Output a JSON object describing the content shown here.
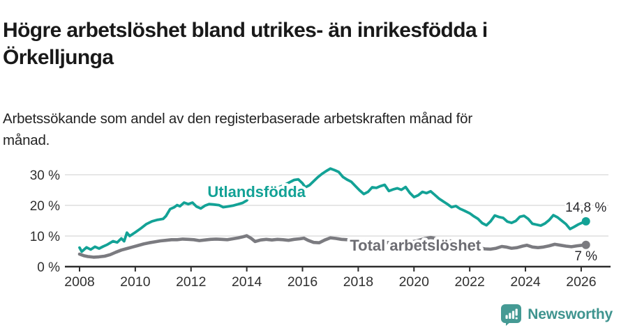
{
  "header": {
    "title_lines": [
      "Högre arbetslöshet bland utrikes- än inrikesfödda i",
      "Örkelljunga"
    ],
    "subtitle_lines": [
      "Arbetssökande som andel av den registerbaserade arbetskraften månad för",
      "månad."
    ]
  },
  "footer": {
    "brand": "Newsworthy",
    "brand_icon": "newsworthy-bars-icon",
    "brand_color": "#3f948f",
    "icon_color": "#459a94"
  },
  "chart_data": {
    "type": "line",
    "title": "Högre arbetslöshet bland utrikes- än inrikesfödda i Örkelljunga",
    "subtitle": "Arbetssökande som andel av den registerbaserade arbetskraften månad för månad.",
    "x_axis": {
      "min": 2008,
      "max": 2026.3,
      "ticks": [
        {
          "label": "2008",
          "value": 2008
        },
        {
          "label": "2010",
          "value": 2010
        },
        {
          "label": "2012",
          "value": 2012
        },
        {
          "label": "2014",
          "value": 2014
        },
        {
          "label": "2016",
          "value": 2016
        },
        {
          "label": "2018",
          "value": 2018
        },
        {
          "label": "2020",
          "value": 2020
        },
        {
          "label": "2022",
          "value": 2022
        },
        {
          "label": "2024",
          "value": 2024
        },
        {
          "label": "2026",
          "value": 2026
        }
      ]
    },
    "y_axis": {
      "min": 0,
      "max": 33,
      "unit": "%",
      "ticks": [
        {
          "label": "30 %",
          "value": 30
        },
        {
          "label": "20 %",
          "value": 20
        },
        {
          "label": "10 %",
          "value": 10
        },
        {
          "label": "0 %",
          "value": 0
        }
      ],
      "grid": true
    },
    "series": [
      {
        "name": "Utlandsfödda",
        "color": "#13a296",
        "label_color": "#13a296",
        "label_pos": {
          "x": 2014.35,
          "y": 24.5
        },
        "end_label": "14,8 %",
        "end_value": 14.8,
        "points": [
          [
            2008.0,
            6.2
          ],
          [
            2008.08,
            4.9
          ],
          [
            2008.25,
            6.3
          ],
          [
            2008.4,
            5.6
          ],
          [
            2008.55,
            6.5
          ],
          [
            2008.7,
            5.9
          ],
          [
            2008.85,
            6.6
          ],
          [
            2009.0,
            7.2
          ],
          [
            2009.2,
            8.3
          ],
          [
            2009.35,
            7.9
          ],
          [
            2009.5,
            9.2
          ],
          [
            2009.6,
            8.3
          ],
          [
            2009.7,
            11.1
          ],
          [
            2009.8,
            10.0
          ],
          [
            2010.0,
            11.2
          ],
          [
            2010.2,
            12.5
          ],
          [
            2010.4,
            13.9
          ],
          [
            2010.6,
            14.8
          ],
          [
            2010.8,
            15.3
          ],
          [
            2011.0,
            15.6
          ],
          [
            2011.1,
            16.5
          ],
          [
            2011.25,
            18.8
          ],
          [
            2011.4,
            19.4
          ],
          [
            2011.5,
            20.1
          ],
          [
            2011.6,
            19.7
          ],
          [
            2011.75,
            20.9
          ],
          [
            2011.9,
            20.4
          ],
          [
            2012.05,
            20.9
          ],
          [
            2012.2,
            19.6
          ],
          [
            2012.35,
            19.0
          ],
          [
            2012.5,
            19.9
          ],
          [
            2012.65,
            20.4
          ],
          [
            2012.8,
            20.3
          ],
          [
            2013.0,
            20.1
          ],
          [
            2013.15,
            19.4
          ],
          [
            2013.3,
            19.6
          ],
          [
            2013.5,
            19.9
          ],
          [
            2013.7,
            20.4
          ],
          [
            2013.85,
            20.8
          ],
          [
            2014.0,
            21.6
          ],
          [
            2014.1,
            23.1
          ],
          [
            2014.2,
            22.4
          ],
          [
            2014.4,
            23.4
          ],
          [
            2014.6,
            24.2
          ],
          [
            2014.8,
            24.9
          ],
          [
            2015.0,
            25.4
          ],
          [
            2015.2,
            26.1
          ],
          [
            2015.4,
            26.9
          ],
          [
            2015.55,
            27.6
          ],
          [
            2015.7,
            28.3
          ],
          [
            2015.85,
            28.5
          ],
          [
            2016.0,
            27.2
          ],
          [
            2016.1,
            25.9
          ],
          [
            2016.25,
            26.6
          ],
          [
            2016.4,
            27.9
          ],
          [
            2016.55,
            29.2
          ],
          [
            2016.7,
            30.3
          ],
          [
            2016.85,
            31.2
          ],
          [
            2017.0,
            32.0
          ],
          [
            2017.15,
            31.5
          ],
          [
            2017.3,
            30.9
          ],
          [
            2017.45,
            29.3
          ],
          [
            2017.6,
            28.4
          ],
          [
            2017.75,
            27.7
          ],
          [
            2017.9,
            26.3
          ],
          [
            2018.05,
            24.9
          ],
          [
            2018.2,
            23.7
          ],
          [
            2018.35,
            24.4
          ],
          [
            2018.5,
            25.9
          ],
          [
            2018.65,
            25.7
          ],
          [
            2018.8,
            26.3
          ],
          [
            2018.95,
            26.7
          ],
          [
            2019.1,
            24.7
          ],
          [
            2019.25,
            25.2
          ],
          [
            2019.4,
            25.6
          ],
          [
            2019.55,
            25.1
          ],
          [
            2019.7,
            26.0
          ],
          [
            2019.85,
            24.1
          ],
          [
            2020.0,
            22.7
          ],
          [
            2020.15,
            23.3
          ],
          [
            2020.3,
            24.4
          ],
          [
            2020.45,
            24.0
          ],
          [
            2020.6,
            24.6
          ],
          [
            2020.75,
            23.4
          ],
          [
            2020.9,
            22.2
          ],
          [
            2021.05,
            21.3
          ],
          [
            2021.2,
            20.4
          ],
          [
            2021.35,
            19.4
          ],
          [
            2021.5,
            19.8
          ],
          [
            2021.65,
            18.9
          ],
          [
            2021.8,
            18.3
          ],
          [
            2022.0,
            17.4
          ],
          [
            2022.15,
            16.4
          ],
          [
            2022.3,
            15.6
          ],
          [
            2022.45,
            14.2
          ],
          [
            2022.6,
            13.5
          ],
          [
            2022.75,
            14.8
          ],
          [
            2022.9,
            16.7
          ],
          [
            2023.05,
            16.2
          ],
          [
            2023.2,
            15.9
          ],
          [
            2023.35,
            14.7
          ],
          [
            2023.5,
            14.3
          ],
          [
            2023.65,
            14.9
          ],
          [
            2023.8,
            16.3
          ],
          [
            2023.95,
            16.6
          ],
          [
            2024.1,
            15.6
          ],
          [
            2024.25,
            14.0
          ],
          [
            2024.4,
            13.7
          ],
          [
            2024.55,
            13.4
          ],
          [
            2024.7,
            14.1
          ],
          [
            2024.85,
            15.2
          ],
          [
            2025.0,
            16.8
          ],
          [
            2025.15,
            16.1
          ],
          [
            2025.3,
            15.0
          ],
          [
            2025.45,
            13.9
          ],
          [
            2025.6,
            12.3
          ],
          [
            2025.75,
            13.0
          ],
          [
            2025.9,
            13.8
          ],
          [
            2026.05,
            14.4
          ],
          [
            2026.17,
            14.8
          ]
        ]
      },
      {
        "name": "Total arbetslöshet",
        "color": "#7b7b80",
        "label_color": "#6c6c72",
        "label_pos": {
          "x": 2020.05,
          "y": 7.0
        },
        "end_label": "7 %",
        "end_value": 7.1,
        "points": [
          [
            2008.0,
            4.1
          ],
          [
            2008.15,
            3.6
          ],
          [
            2008.3,
            3.3
          ],
          [
            2008.5,
            3.1
          ],
          [
            2008.7,
            3.2
          ],
          [
            2008.9,
            3.4
          ],
          [
            2009.1,
            3.9
          ],
          [
            2009.3,
            4.7
          ],
          [
            2009.5,
            5.4
          ],
          [
            2009.7,
            5.9
          ],
          [
            2009.9,
            6.4
          ],
          [
            2010.1,
            6.9
          ],
          [
            2010.3,
            7.4
          ],
          [
            2010.5,
            7.8
          ],
          [
            2010.7,
            8.1
          ],
          [
            2010.9,
            8.4
          ],
          [
            2011.1,
            8.6
          ],
          [
            2011.3,
            8.8
          ],
          [
            2011.5,
            8.8
          ],
          [
            2011.7,
            9.0
          ],
          [
            2011.9,
            8.9
          ],
          [
            2012.1,
            8.8
          ],
          [
            2012.3,
            8.5
          ],
          [
            2012.5,
            8.7
          ],
          [
            2012.7,
            8.9
          ],
          [
            2012.9,
            9.0
          ],
          [
            2013.1,
            8.9
          ],
          [
            2013.3,
            8.8
          ],
          [
            2013.5,
            9.1
          ],
          [
            2013.7,
            9.4
          ],
          [
            2013.85,
            9.7
          ],
          [
            2014.0,
            10.1
          ],
          [
            2014.15,
            9.3
          ],
          [
            2014.3,
            8.2
          ],
          [
            2014.5,
            8.7
          ],
          [
            2014.7,
            8.9
          ],
          [
            2014.9,
            8.7
          ],
          [
            2015.1,
            8.9
          ],
          [
            2015.3,
            8.8
          ],
          [
            2015.5,
            8.6
          ],
          [
            2015.7,
            8.9
          ],
          [
            2015.9,
            9.1
          ],
          [
            2016.05,
            9.3
          ],
          [
            2016.2,
            8.6
          ],
          [
            2016.4,
            7.9
          ],
          [
            2016.6,
            7.8
          ],
          [
            2016.8,
            8.7
          ],
          [
            2017.0,
            9.4
          ],
          [
            2017.2,
            9.2
          ],
          [
            2017.4,
            8.9
          ],
          [
            2017.6,
            8.8
          ],
          [
            2017.8,
            8.7
          ],
          [
            2018.0,
            8.4
          ],
          [
            2018.3,
            8.1
          ],
          [
            2018.6,
            8.0
          ],
          [
            2018.9,
            7.9
          ],
          [
            2019.2,
            7.8
          ],
          [
            2019.5,
            7.8
          ],
          [
            2019.8,
            7.9
          ],
          [
            2020.1,
            8.4
          ],
          [
            2020.4,
            9.2
          ],
          [
            2020.6,
            9.5
          ],
          [
            2020.9,
            9.1
          ],
          [
            2021.2,
            8.6
          ],
          [
            2021.5,
            8.0
          ],
          [
            2021.8,
            7.4
          ],
          [
            2022.1,
            6.7
          ],
          [
            2022.35,
            6.1
          ],
          [
            2022.55,
            5.8
          ],
          [
            2022.75,
            5.7
          ],
          [
            2022.95,
            6.0
          ],
          [
            2023.15,
            6.6
          ],
          [
            2023.3,
            6.4
          ],
          [
            2023.5,
            6.0
          ],
          [
            2023.7,
            6.2
          ],
          [
            2023.9,
            6.7
          ],
          [
            2024.05,
            7.0
          ],
          [
            2024.25,
            6.4
          ],
          [
            2024.45,
            6.2
          ],
          [
            2024.65,
            6.4
          ],
          [
            2024.85,
            6.8
          ],
          [
            2025.05,
            7.3
          ],
          [
            2025.25,
            7.0
          ],
          [
            2025.45,
            6.7
          ],
          [
            2025.65,
            6.5
          ],
          [
            2025.85,
            6.8
          ],
          [
            2026.05,
            7.0
          ],
          [
            2026.17,
            7.1
          ]
        ]
      }
    ],
    "style": {
      "grid_color": "#dddddd",
      "axis_color": "#2d2d2d",
      "tick_label_color": "#303030",
      "annotation_color": "#28282c"
    }
  }
}
